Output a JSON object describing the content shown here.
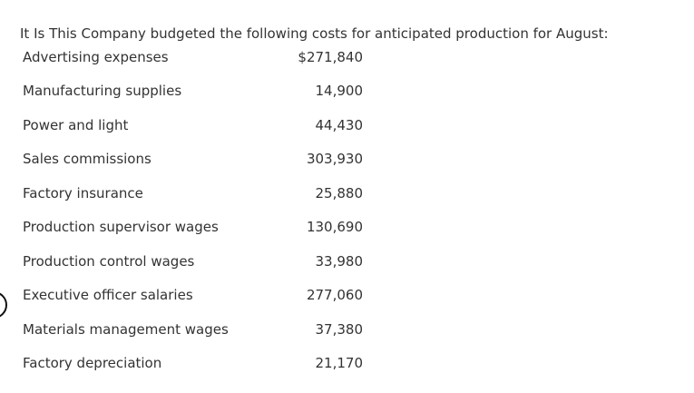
{
  "intro": "It Is This Company budgeted the following costs for anticipated production for August:",
  "rows": [
    {
      "label": "Advertising expenses",
      "amount": "$271,840"
    },
    {
      "label": "Manufacturing supplies",
      "amount": "14,900"
    },
    {
      "label": "Power and light",
      "amount": "44,430"
    },
    {
      "label": "Sales commissions",
      "amount": "303,930"
    },
    {
      "label": "Factory insurance",
      "amount": "25,880"
    },
    {
      "label": "Production supervisor wages",
      "amount": "130,690"
    },
    {
      "label": "Production control wages",
      "amount": "33,980"
    },
    {
      "label": "Executive officer salaries",
      "amount": "277,060"
    },
    {
      "label": "Materials management wages",
      "amount": "37,380"
    },
    {
      "label": "Factory depreciation",
      "amount": "21,170"
    }
  ]
}
